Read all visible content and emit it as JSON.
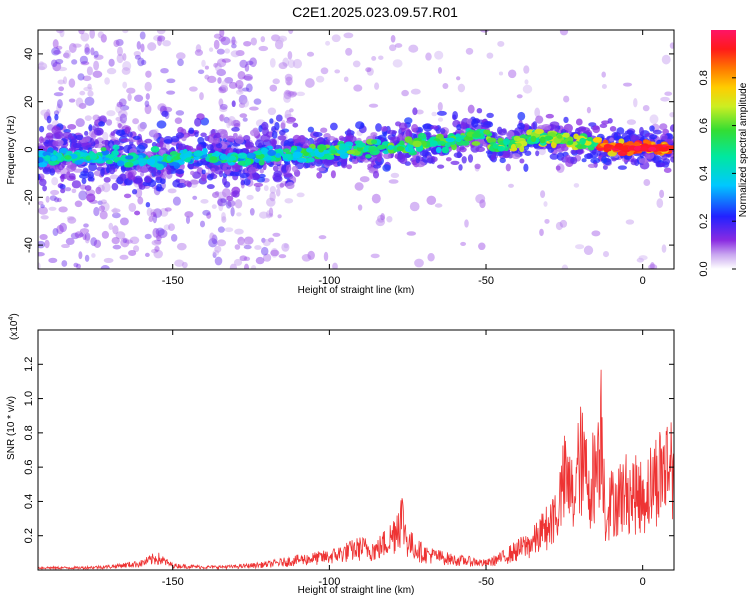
{
  "title": "C2E1.2025.023.09.57.R01",
  "chart_data": [
    {
      "type": "heatmap",
      "xlabel": "Height of straight line (km)",
      "ylabel": "Frequency (Hz)",
      "xlim": [
        -193,
        10
      ],
      "ylim": [
        -50,
        50
      ],
      "xticks": [
        -150,
        -100,
        -50,
        0
      ],
      "yticks": [
        -40,
        -20,
        0,
        20,
        40
      ],
      "colorbar": {
        "label": "Normalized spectral amplitude",
        "range": [
          0,
          1
        ],
        "ticks": [
          "0.0",
          "0.2",
          "0.4",
          "0.6",
          "0.8"
        ],
        "tick_values": [
          0,
          0.2,
          0.4,
          0.6,
          0.8
        ]
      },
      "ridge": [
        [
          -190,
          -3
        ],
        [
          -170,
          -3
        ],
        [
          -160,
          -5
        ],
        [
          -150,
          -4
        ],
        [
          -140,
          -3
        ],
        [
          -130,
          -4
        ],
        [
          -120,
          -3
        ],
        [
          -110,
          -2
        ],
        [
          -100,
          -1
        ],
        [
          -90,
          0
        ],
        [
          -80,
          1
        ],
        [
          -70,
          2
        ],
        [
          -60,
          4
        ],
        [
          -50,
          7
        ],
        [
          -47,
          0
        ],
        [
          -40,
          3
        ],
        [
          -35,
          5
        ],
        [
          -30,
          5
        ],
        [
          -25,
          4
        ],
        [
          -20,
          3
        ],
        [
          -15,
          2
        ],
        [
          -10,
          1
        ],
        [
          -5,
          0.5
        ],
        [
          0,
          0.5
        ],
        [
          10,
          0.5
        ]
      ]
    },
    {
      "type": "line",
      "xlabel": "Height of straight line (km)",
      "ylabel": "SNR (10 * v/v)",
      "yscale_label": "(x10",
      "yscale_exp": "4",
      "yscale_close": ")",
      "xlim": [
        -193,
        10
      ],
      "ylim": [
        0,
        14000
      ],
      "xticks": [
        -150,
        -100,
        -50,
        0
      ],
      "yticks": [
        2000,
        4000,
        6000,
        8000,
        10000,
        12000
      ],
      "yticklabels": [
        "0.2",
        "0.4",
        "0.6",
        "0.8",
        "1.0",
        "1.2"
      ],
      "color": "#ee3333",
      "series": [
        {
          "x": [
            -193,
            -180,
            -170,
            -160,
            -155,
            -150,
            -140,
            -130,
            -125,
            -120,
            -110,
            -100,
            -90,
            -85,
            -80,
            -77,
            -75,
            -70,
            -65,
            -60,
            -55,
            -50,
            -45,
            -40,
            -35,
            -30,
            -27,
            -25,
            -22,
            -20,
            -17,
            -15,
            -13,
            -12,
            -10,
            -5,
            0,
            5,
            10
          ],
          "y": [
            200,
            200,
            300,
            600,
            1100,
            400,
            250,
            300,
            400,
            500,
            900,
            1200,
            2000,
            1800,
            3000,
            5000,
            2500,
            1500,
            1200,
            900,
            800,
            600,
            1100,
            1800,
            2500,
            4000,
            5500,
            8000,
            6500,
            10000,
            7500,
            9000,
            13500,
            5000,
            6000,
            7000,
            6500,
            8500,
            10000
          ]
        }
      ]
    }
  ]
}
